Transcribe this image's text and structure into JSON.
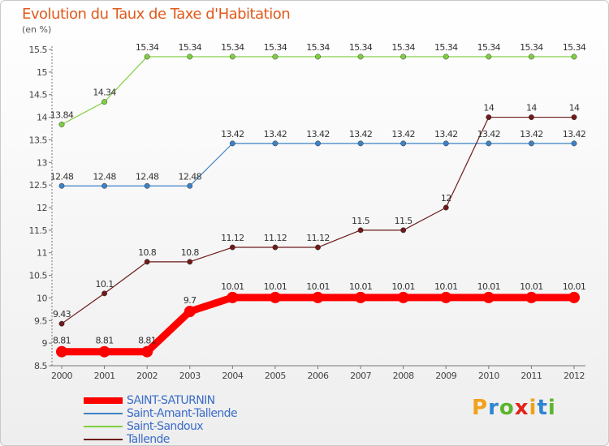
{
  "title": "Evolution du Taux de Taxe d'Habitation",
  "unit": "(en %)",
  "logo": "Proxiti",
  "logo_colors": [
    "#f2a11a",
    "#2e86d1",
    "#5bb52d",
    "#e2231a",
    "#f2a11a",
    "#2e86d1",
    "#5bb52d"
  ],
  "chart_data": {
    "type": "line",
    "x": [
      "2000",
      "2001",
      "2002",
      "2003",
      "2004",
      "2005",
      "2006",
      "2007",
      "2008",
      "2009",
      "2010",
      "2011",
      "2012"
    ],
    "ylim": [
      8.5,
      15.5
    ],
    "yticks": [
      "8.5",
      "9",
      "9.5",
      "10",
      "10.5",
      "11",
      "11.5",
      "12",
      "12.5",
      "13",
      "13.5",
      "14",
      "14.5",
      "15",
      "15.5"
    ],
    "grid": false,
    "legend_position": "bottom-left",
    "series": [
      {
        "name": "SAINT-SATURNIN",
        "color": "#ff0000",
        "values": [
          8.81,
          8.81,
          8.81,
          9.7,
          10.01,
          10.01,
          10.01,
          10.01,
          10.01,
          10.01,
          10.01,
          10.01,
          10.01
        ],
        "labels": [
          "8.81",
          "8.81",
          "8.81",
          "9.7",
          "10.01",
          "10.01",
          "10.01",
          "10.01",
          "10.01",
          "10.01",
          "10.01",
          "10.01",
          "10.01"
        ]
      },
      {
        "name": "Saint-Amant-Tallende",
        "color": "#3d82c4",
        "values": [
          12.48,
          12.48,
          12.48,
          12.48,
          13.42,
          13.42,
          13.42,
          13.42,
          13.42,
          13.42,
          13.42,
          13.42,
          13.42
        ],
        "labels": [
          "12.48",
          "12.48",
          "12.48",
          "12.48",
          "13.42",
          "13.42",
          "13.42",
          "13.42",
          "13.42",
          "13.42",
          "13.42",
          "13.42",
          "13.42"
        ]
      },
      {
        "name": "Saint-Sandoux",
        "color": "#7fcf3f",
        "values": [
          13.84,
          14.34,
          15.34,
          15.34,
          15.34,
          15.34,
          15.34,
          15.34,
          15.34,
          15.34,
          15.34,
          15.34,
          15.34
        ],
        "labels": [
          "13.84",
          "14.34",
          "15.34",
          "15.34",
          "15.34",
          "15.34",
          "15.34",
          "15.34",
          "15.34",
          "15.34",
          "15.34",
          "15.34",
          "15.34"
        ]
      },
      {
        "name": "Tallende",
        "color": "#6e1a1a",
        "values": [
          9.43,
          10.1,
          10.8,
          10.8,
          11.12,
          11.12,
          11.12,
          11.5,
          11.5,
          12,
          14,
          14,
          14
        ],
        "labels": [
          "9.43",
          "10.1",
          "10.8",
          "10.8",
          "11.12",
          "11.12",
          "11.12",
          "11.5",
          "11.5",
          "12",
          "14",
          "14",
          "14"
        ]
      }
    ]
  }
}
